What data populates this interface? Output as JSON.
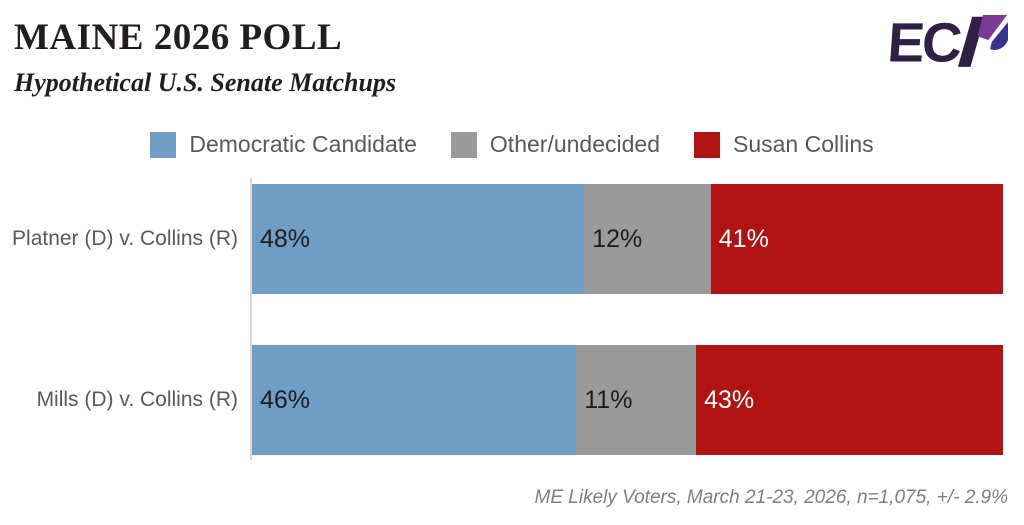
{
  "header": {
    "title": "MAINE 2026 POLL",
    "subtitle": "Hypothetical U.S. Senate Matchups"
  },
  "logo": {
    "text": "ECP",
    "colors": {
      "dark_purple": "#2e2145",
      "purple": "#7c3a97",
      "indigo": "#36318c"
    }
  },
  "chart_data": {
    "type": "bar",
    "orientation": "horizontal-stacked",
    "normalized_to_100": true,
    "categories": [
      "Platner (D) v. Collins (R)",
      "Mills (D) v. Collins (R)"
    ],
    "series": [
      {
        "name": "Democratic Candidate",
        "color": "#6f9dc4",
        "label_color": "#1d1d1d",
        "values": [
          48,
          46
        ]
      },
      {
        "name": "Other/undecided",
        "color": "#9a9a9a",
        "label_color": "#1d1d1d",
        "values": [
          12,
          11
        ]
      },
      {
        "name": "Susan Collins",
        "color": "#b11312",
        "label_color": "#ffffff",
        "values": [
          41,
          43
        ]
      }
    ],
    "value_suffix": "%",
    "legend_position": "top-center",
    "grid": false,
    "axis_line_color": "#d9d9d9"
  },
  "footer": {
    "note": "ME Likely Voters, March 21-23, 2026, n=1,075, +/- 2.9%"
  }
}
